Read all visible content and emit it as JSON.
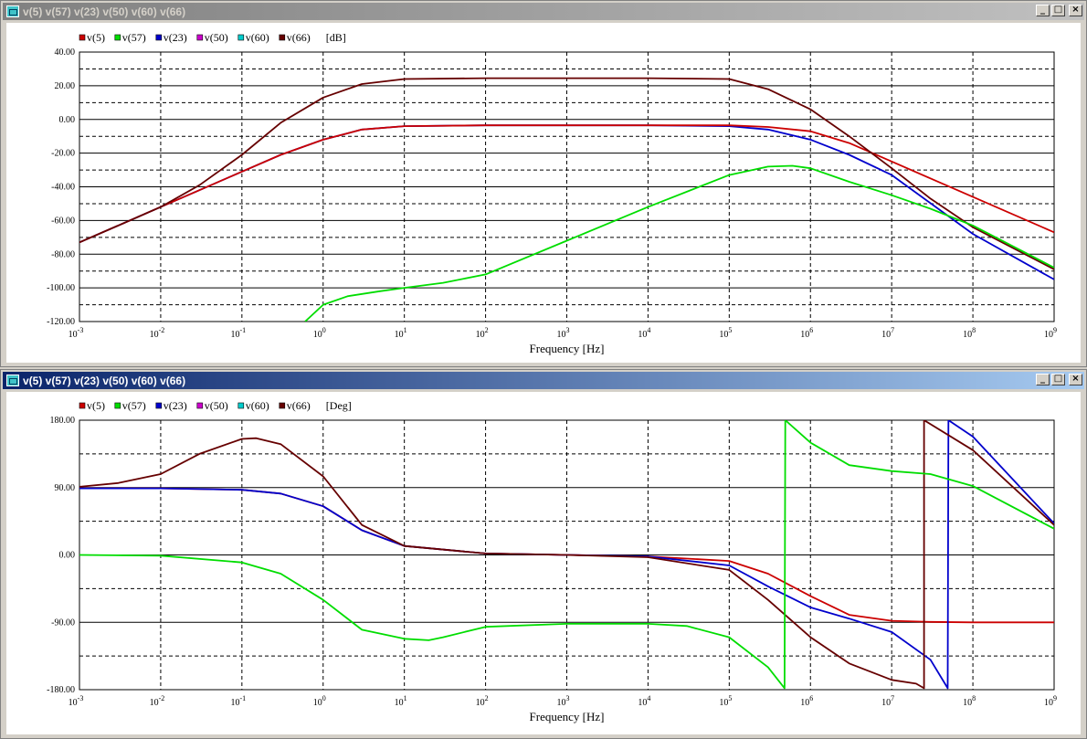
{
  "windows": [
    {
      "title": "v(5) v(57) v(23) v(50) v(60) v(66)",
      "active": false
    },
    {
      "title": "v(5) v(57) v(23) v(50) v(60) v(66)",
      "active": true
    }
  ],
  "window_buttons": {
    "minimize": "_",
    "restore": "□",
    "close": "×"
  },
  "colors": {
    "v5": "#cc0000",
    "v57": "#00dd00",
    "v23": "#0000cc",
    "v50": "#cc00cc",
    "v60": "#00cccc",
    "v66": "#660000"
  },
  "chart_data": [
    {
      "type": "line",
      "xscale": "log",
      "xlim": [
        0.001,
        1000000000
      ],
      "ylim": [
        -120,
        40
      ],
      "yticks": [
        "40.00",
        "20.00",
        "0.00",
        "-20.00",
        "-40.00",
        "-60.00",
        "-80.00",
        "-100.00",
        "-120.00"
      ],
      "xticks": [
        {
          "base": "10",
          "exp": "-3"
        },
        {
          "base": "10",
          "exp": "-2"
        },
        {
          "base": "10",
          "exp": "-1"
        },
        {
          "base": "10",
          "exp": "0"
        },
        {
          "base": "10",
          "exp": "1"
        },
        {
          "base": "10",
          "exp": "2"
        },
        {
          "base": "10",
          "exp": "3"
        },
        {
          "base": "10",
          "exp": "4"
        },
        {
          "base": "10",
          "exp": "5"
        },
        {
          "base": "10",
          "exp": "6"
        },
        {
          "base": "10",
          "exp": "7"
        },
        {
          "base": "10",
          "exp": "8"
        },
        {
          "base": "10",
          "exp": "9"
        }
      ],
      "xlabel": "Frequency [Hz]",
      "unit": "[dB]",
      "grid": true,
      "legend": [
        "v(5)",
        "v(57)",
        "v(23)",
        "v(50)",
        "v(60)",
        "v(66)"
      ],
      "series": [
        {
          "name": "v(23)",
          "color": "#0000cc",
          "x": [
            0.001,
            0.003,
            0.01,
            0.03,
            0.1,
            0.3,
            1,
            3,
            10,
            100,
            10000,
            100000,
            300000,
            1000000,
            3000000,
            10000000,
            100000000,
            1000000000
          ],
          "y": [
            -73,
            -63,
            -52,
            -42,
            -31,
            -21,
            -12,
            -6,
            -4,
            -3.5,
            -3.5,
            -4,
            -6,
            -12,
            -21,
            -33,
            -68,
            -95
          ]
        },
        {
          "name": "v(5)",
          "color": "#cc0000",
          "x": [
            0.001,
            0.003,
            0.01,
            0.03,
            0.1,
            0.3,
            1,
            3,
            10,
            100,
            10000,
            100000,
            300000,
            1000000,
            3000000,
            10000000,
            30000000,
            100000000,
            1000000000
          ],
          "y": [
            -73,
            -63,
            -52,
            -42,
            -31,
            -21,
            -12,
            -6,
            -4,
            -3.5,
            -3.5,
            -3.5,
            -4.5,
            -7,
            -14,
            -25,
            -35,
            -46,
            -67
          ]
        },
        {
          "name": "v(66)",
          "color": "#660000",
          "x": [
            0.001,
            0.003,
            0.01,
            0.03,
            0.1,
            0.3,
            1,
            3,
            10,
            100,
            10000,
            100000,
            300000,
            1000000,
            3000000,
            10000000,
            30000000,
            100000000,
            1000000000
          ],
          "y": [
            -73,
            -63,
            -52,
            -39,
            -21,
            -2,
            13,
            21,
            24,
            24.5,
            24.5,
            24,
            18,
            6,
            -10,
            -29,
            -47,
            -64,
            -89
          ]
        },
        {
          "name": "v(57)",
          "color": "#00dd00",
          "x": [
            0.6,
            1,
            2,
            5,
            10,
            30,
            100,
            1000,
            10000,
            100000,
            300000,
            600000,
            1000000,
            3000000,
            10000000,
            30000000,
            100000000,
            1000000000
          ],
          "y": [
            -120,
            -110,
            -105,
            -102,
            -100,
            -97,
            -92,
            -72,
            -52,
            -33,
            -28,
            -27.5,
            -29,
            -37,
            -45,
            -53,
            -63,
            -88
          ]
        }
      ]
    },
    {
      "type": "line",
      "xscale": "log",
      "xlim": [
        0.001,
        1000000000
      ],
      "ylim": [
        -180,
        180
      ],
      "yticks": [
        "180.00",
        "90.00",
        "0.00",
        "-90.00",
        "-180.00"
      ],
      "xticks": [
        {
          "base": "10",
          "exp": "-3"
        },
        {
          "base": "10",
          "exp": "-2"
        },
        {
          "base": "10",
          "exp": "-1"
        },
        {
          "base": "10",
          "exp": "0"
        },
        {
          "base": "10",
          "exp": "1"
        },
        {
          "base": "10",
          "exp": "2"
        },
        {
          "base": "10",
          "exp": "3"
        },
        {
          "base": "10",
          "exp": "4"
        },
        {
          "base": "10",
          "exp": "5"
        },
        {
          "base": "10",
          "exp": "6"
        },
        {
          "base": "10",
          "exp": "7"
        },
        {
          "base": "10",
          "exp": "8"
        },
        {
          "base": "10",
          "exp": "9"
        }
      ],
      "xlabel": "Frequency [Hz]",
      "unit": "[Deg]",
      "grid": true,
      "legend": [
        "v(5)",
        "v(57)",
        "v(23)",
        "v(50)",
        "v(60)",
        "v(66)"
      ],
      "series": [
        {
          "name": "v(5)",
          "color": "#cc0000",
          "x": [
            0.001,
            0.01,
            0.1,
            0.3,
            1,
            3,
            10,
            100,
            1000,
            10000,
            100000,
            300000,
            1000000,
            3000000,
            10000000,
            30000000,
            100000000,
            1000000000
          ],
          "y": [
            89,
            89,
            87,
            82,
            65,
            33,
            12,
            2,
            0,
            -2,
            -8,
            -25,
            -55,
            -80,
            -88,
            -89.5,
            -90,
            -90
          ]
        },
        {
          "name": "v(23)",
          "color": "#0000cc",
          "x": [
            0.001,
            0.01,
            0.1,
            0.3,
            1,
            3,
            10,
            100,
            1000,
            10000,
            100000,
            300000,
            1000000,
            3000000,
            10000000,
            30000000,
            49000000,
            50000000,
            100000000,
            1000000000
          ],
          "y": [
            89,
            89,
            87,
            82,
            65,
            33,
            12,
            2,
            0,
            -2,
            -14,
            -42,
            -70,
            -85,
            -103,
            -140,
            -178,
            180,
            158,
            42
          ]
        },
        {
          "name": "v(66)",
          "color": "#660000",
          "x": [
            0.001,
            0.003,
            0.01,
            0.03,
            0.1,
            0.15,
            0.3,
            1,
            3,
            10,
            100,
            1000,
            10000,
            100000,
            300000,
            1000000,
            3000000,
            10000000,
            20000000,
            25000000,
            25000001,
            100000000,
            1000000000
          ],
          "y": [
            91,
            96,
            108,
            135,
            155,
            156,
            148,
            105,
            40,
            12,
            2,
            0,
            -3,
            -20,
            -60,
            -110,
            -145,
            -167,
            -172,
            -178,
            180,
            140,
            40
          ]
        },
        {
          "name": "v(57)",
          "color": "#00dd00",
          "x": [
            0.001,
            0.01,
            0.1,
            0.3,
            1,
            3,
            10,
            20,
            30,
            100,
            1000,
            10000,
            30000,
            100000,
            300000,
            480000,
            490000,
            1000000,
            3000000,
            10000000,
            30000000,
            100000000,
            1000000000
          ],
          "y": [
            0,
            -1,
            -10,
            -25,
            -60,
            -100,
            -112,
            -114,
            -110,
            -96,
            -92,
            -92,
            -95,
            -110,
            -150,
            -178,
            180,
            150,
            120,
            112,
            108,
            92,
            35
          ]
        }
      ]
    }
  ]
}
